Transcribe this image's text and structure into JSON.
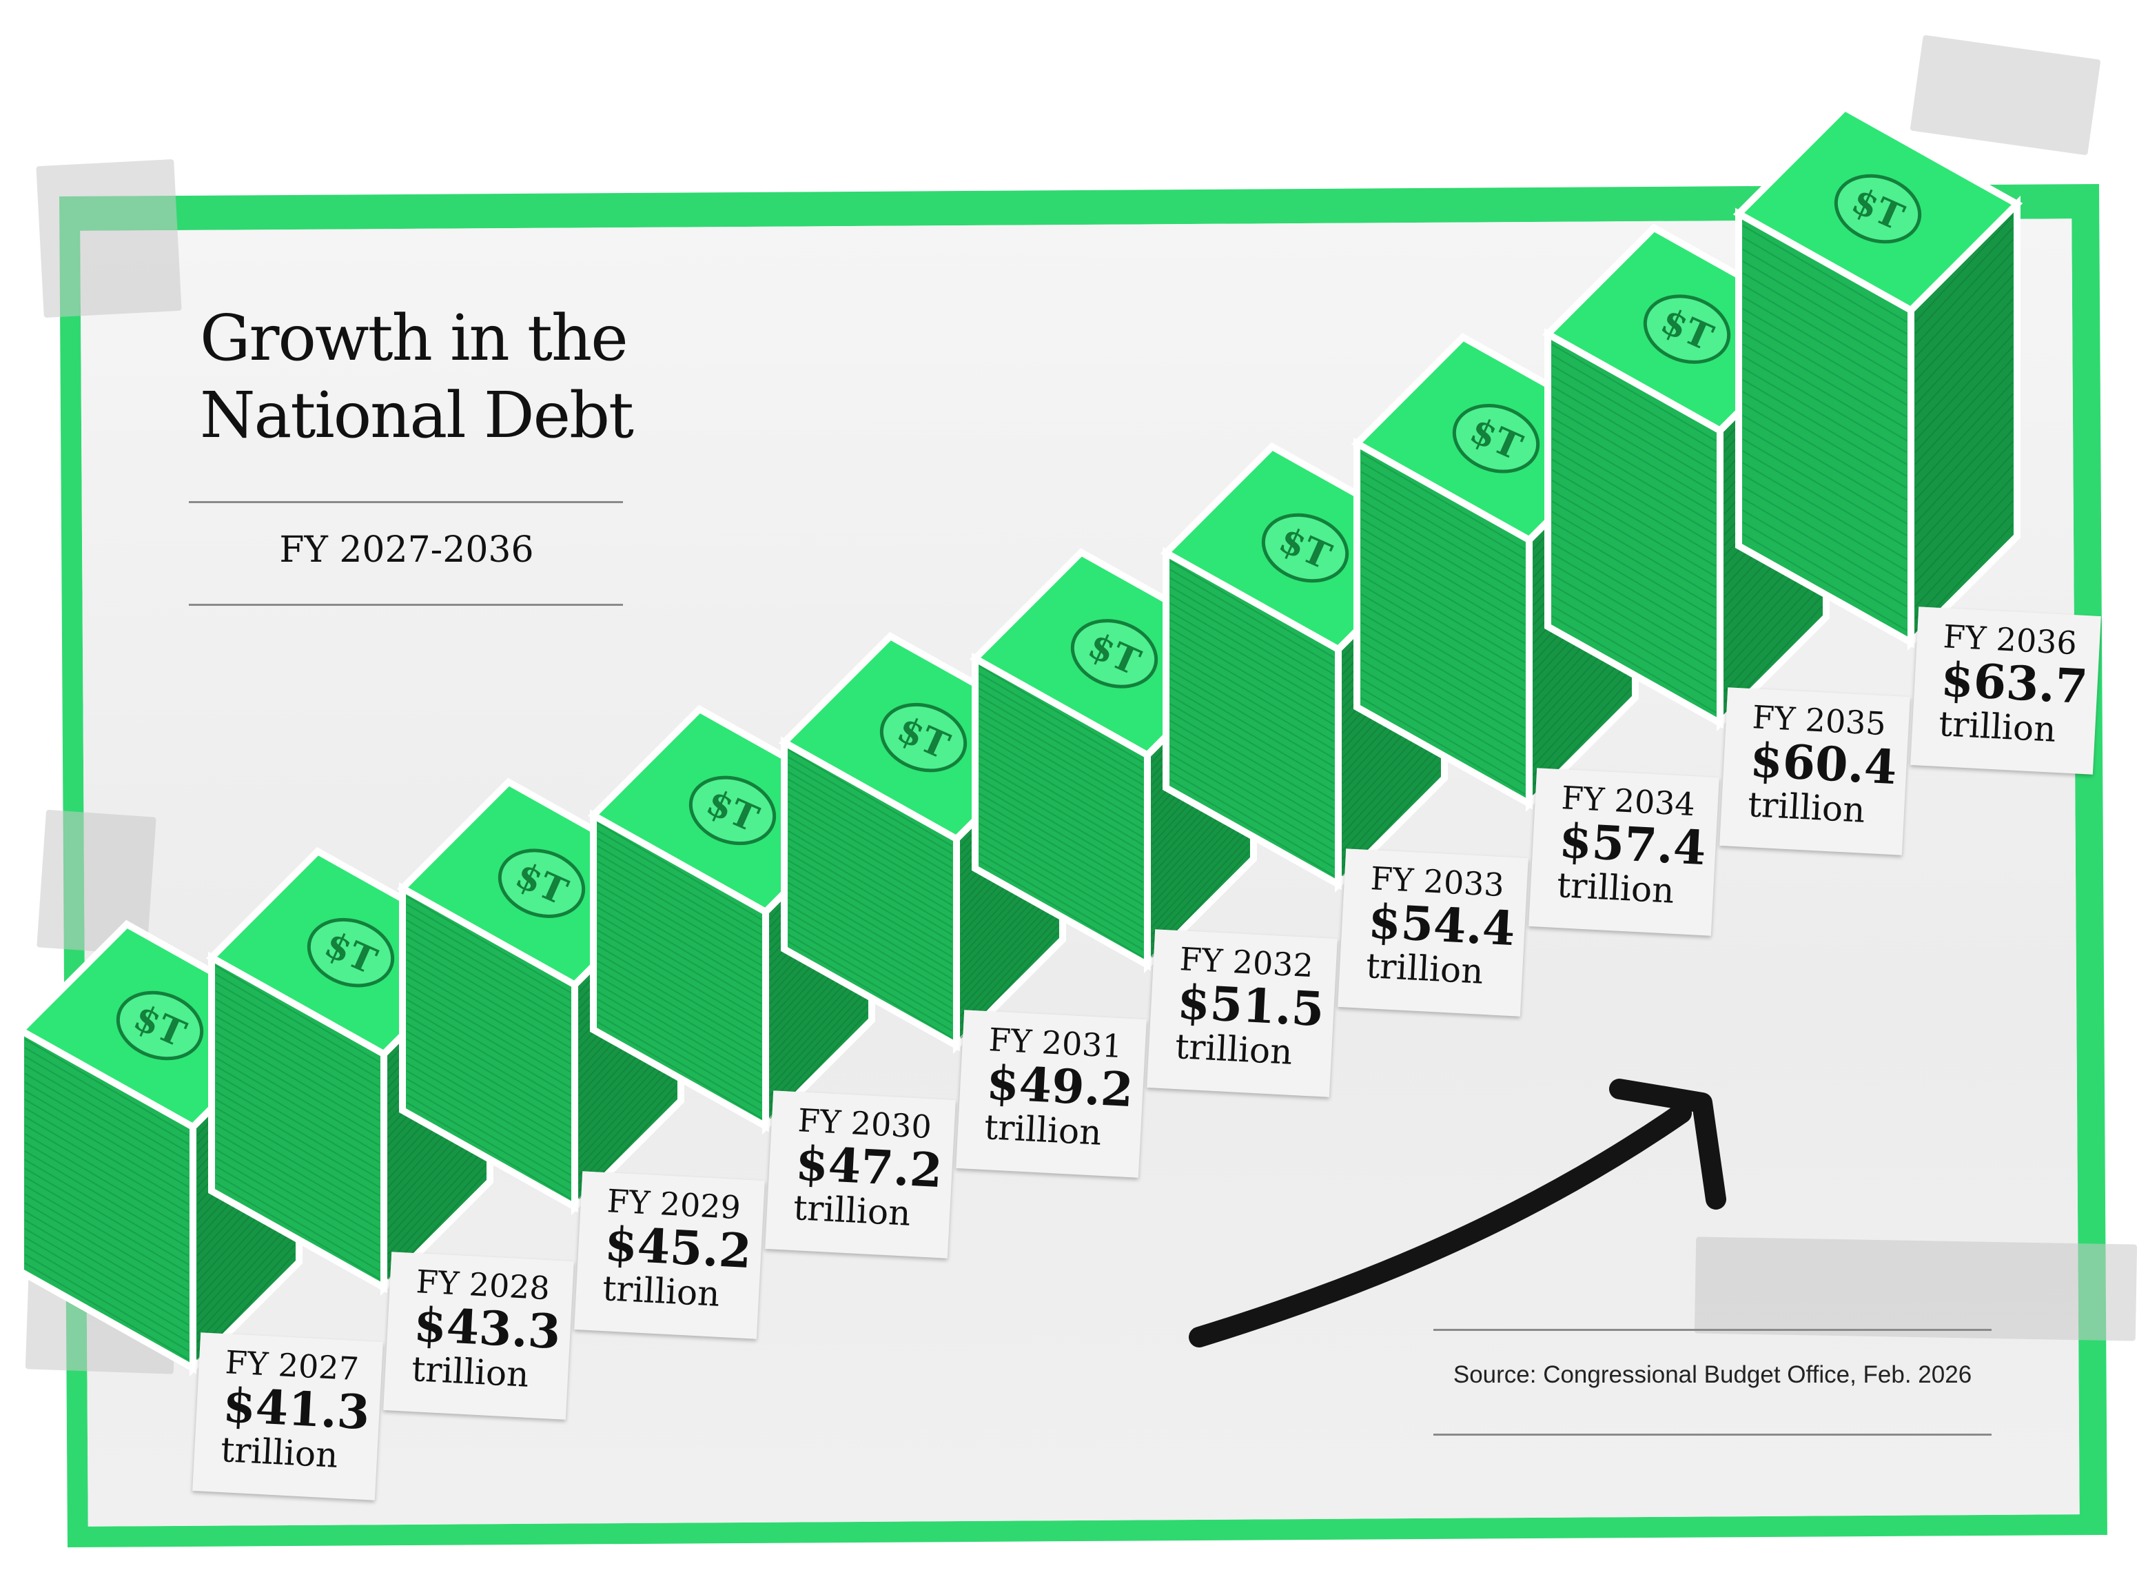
{
  "title_line1": "Growth in the",
  "title_line2": "National Debt",
  "subtitle": "FY 2027-2036",
  "source": "Source: Congressional Budget Office, Feb. 2026",
  "bill_symbol": "$T",
  "colors": {
    "border": "#2fd970",
    "stack_front": "#1eb657",
    "stack_side": "#169645",
    "stack_top": "#2ee675",
    "bill": "#4ff08f",
    "label_bg": "#f3f3f3"
  },
  "chart_data": {
    "type": "bar",
    "categories": [
      "FY 2027",
      "FY 2028",
      "FY 2029",
      "FY 2030",
      "FY 2031",
      "FY 2032",
      "FY 2033",
      "FY 2034",
      "FY 2035",
      "FY 2036"
    ],
    "values": [
      41.3,
      43.3,
      45.2,
      47.2,
      49.2,
      51.5,
      54.4,
      57.4,
      60.4,
      63.7
    ],
    "value_labels": [
      "$41.3",
      "$43.3",
      "$45.2",
      "$47.2",
      "$49.2",
      "$51.5",
      "$54.4",
      "$57.4",
      "$60.4",
      "$63.7"
    ],
    "unit": "trillion",
    "title": "Growth in the National Debt",
    "subtitle": "FY 2027-2036"
  }
}
